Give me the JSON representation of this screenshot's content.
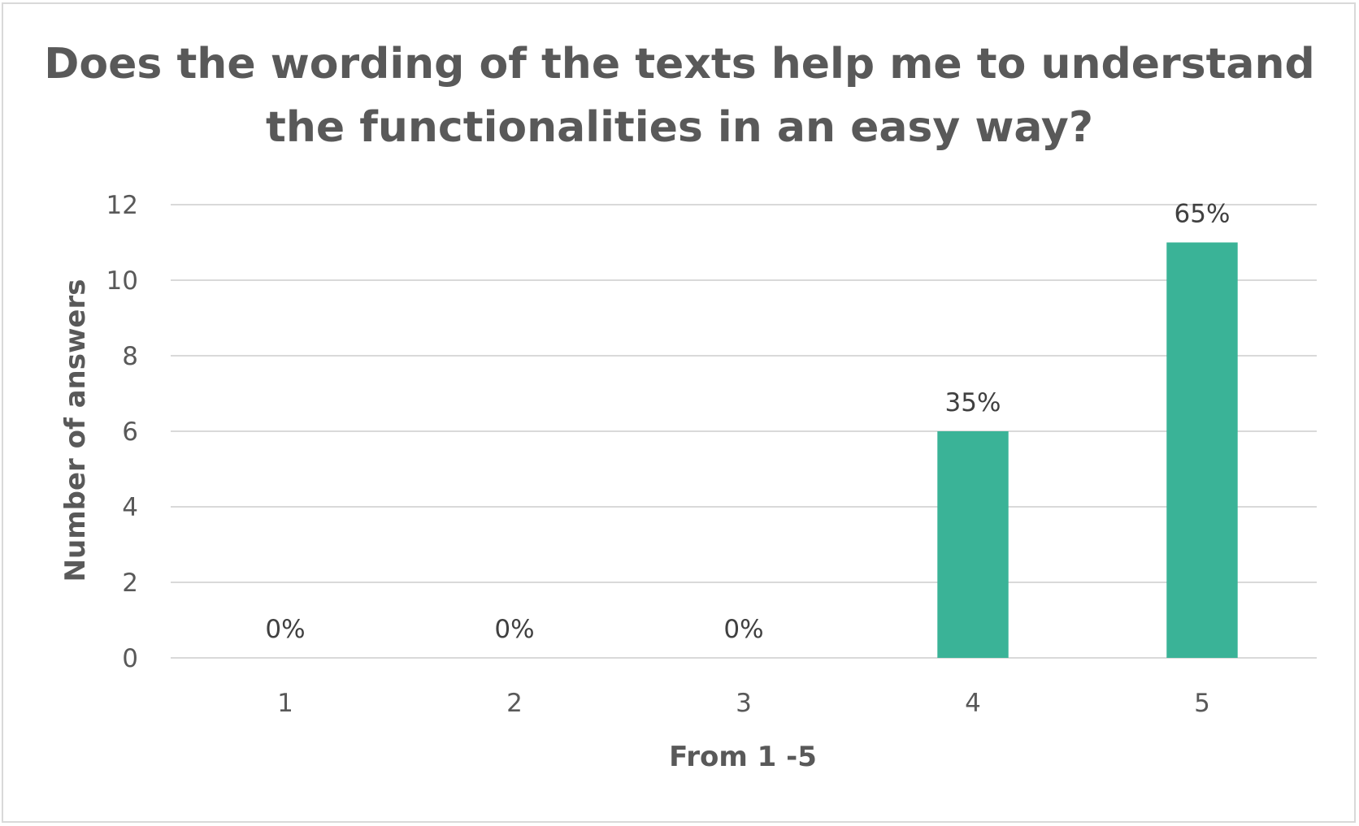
{
  "chart_data": {
    "type": "bar",
    "title": "Does the wording of the texts help me to understand the functionalities in an easy way?",
    "xlabel": "From 1 -5",
    "ylabel": "Number of answers",
    "categories": [
      "1",
      "2",
      "3",
      "4",
      "5"
    ],
    "values": [
      0,
      0,
      0,
      6,
      11
    ],
    "data_labels": [
      "0%",
      "0%",
      "0%",
      "35%",
      "65%"
    ],
    "ylim": [
      0,
      12
    ],
    "yticks": [
      "0",
      "2",
      "4",
      "6",
      "8",
      "10",
      "12"
    ],
    "grid": true,
    "legend": "none",
    "bar_color": "#3ab397",
    "grid_color": "#d9d9d9",
    "text_color": "#595959"
  }
}
